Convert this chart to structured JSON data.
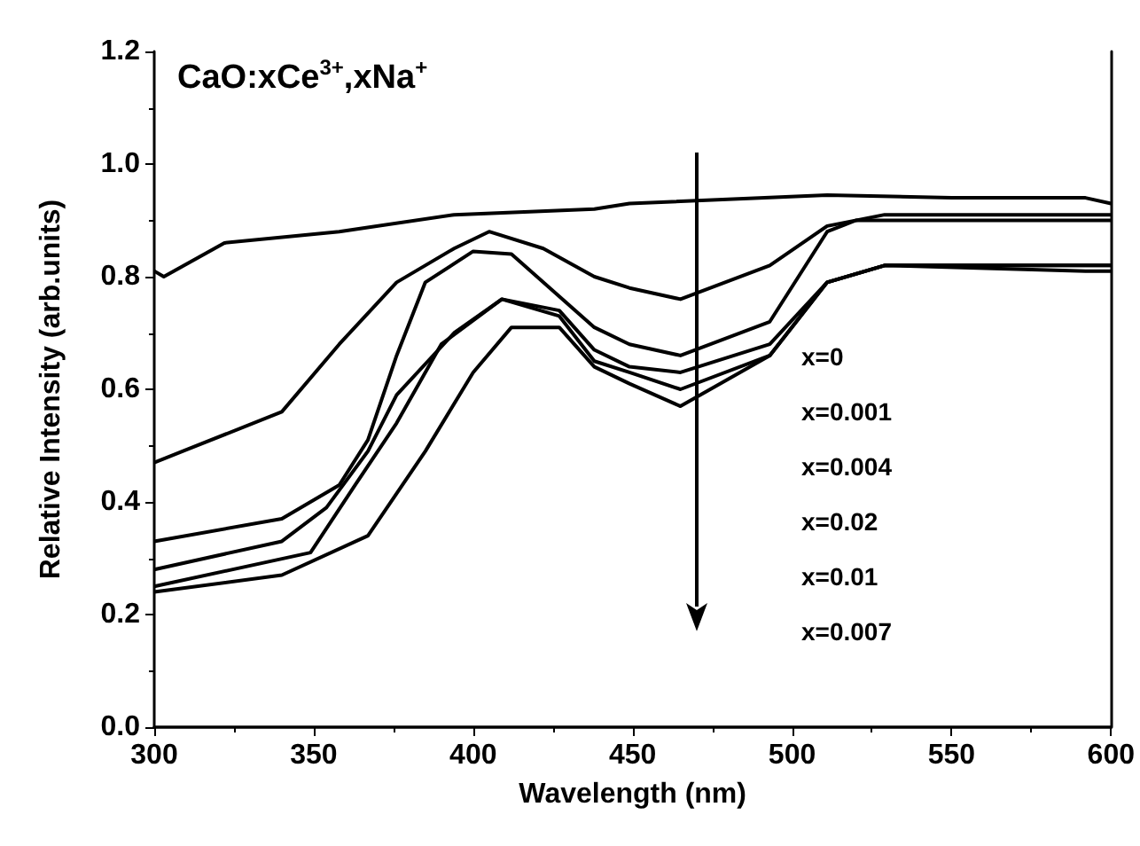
{
  "chart_data": {
    "type": "line",
    "title": "CaO:xCe$^{3+}$,xNa$^{+}$",
    "xlabel": "Wavelength (nm)",
    "ylabel": "Relative Intensity (arb.units)",
    "annotations": [
      "x=0",
      "x=0.001",
      "x=0.004",
      "x=0.02",
      "x=0.01",
      "x=0.007"
    ],
    "xlim": [
      300,
      600
    ],
    "xticks": [
      300,
      350,
      400,
      450,
      500,
      550,
      600
    ],
    "ylim": [
      0,
      1.2
    ],
    "yticks": [
      {
        "value": 0,
        "label": "0.0"
      },
      {
        "value": 0.2,
        "label": "0.2"
      },
      {
        "value": 0.4,
        "label": "0.4"
      },
      {
        "value": 0.6,
        "label": "0.6"
      },
      {
        "value": 0.8,
        "label": "0.8"
      },
      {
        "value": 1.0,
        "label": "1.0"
      },
      {
        "value": 1.2,
        "label": "1.2"
      }
    ],
    "grid": false,
    "marker": "none",
    "line_style": "solid",
    "series": [
      {
        "color": "#000000",
        "x": [
          300,
          303,
          322,
          358,
          394,
          438,
          449,
          511,
          550,
          592,
          600
        ],
        "values": [
          0.81,
          0.8,
          0.86,
          0.88,
          0.91,
          0.92,
          0.93,
          0.945,
          0.94,
          0.94,
          0.93
        ]
      },
      {
        "color": "#000000",
        "x": [
          300,
          340,
          358,
          376,
          394,
          405,
          422,
          438,
          449,
          465,
          493,
          511,
          529,
          592,
          600
        ],
        "values": [
          0.47,
          0.56,
          0.68,
          0.79,
          0.85,
          0.88,
          0.85,
          0.8,
          0.78,
          0.76,
          0.82,
          0.89,
          0.91,
          0.91,
          0.91
        ]
      },
      {
        "color": "#000000",
        "x": [
          300,
          340,
          358,
          367,
          376,
          385,
          400,
          412,
          438,
          449,
          465,
          493,
          511,
          520,
          592,
          600
        ],
        "values": [
          0.33,
          0.37,
          0.43,
          0.51,
          0.66,
          0.79,
          0.845,
          0.84,
          0.71,
          0.68,
          0.66,
          0.72,
          0.88,
          0.9,
          0.9,
          0.9
        ]
      },
      {
        "color": "#000000",
        "x": [
          300,
          340,
          354,
          367,
          376,
          394,
          409,
          427,
          438,
          449,
          465,
          493,
          511,
          529,
          592,
          600
        ],
        "values": [
          0.28,
          0.33,
          0.39,
          0.49,
          0.59,
          0.7,
          0.76,
          0.74,
          0.67,
          0.64,
          0.63,
          0.68,
          0.79,
          0.82,
          0.82,
          0.82
        ]
      },
      {
        "color": "#000000",
        "x": [
          300,
          349,
          363,
          376,
          390,
          409,
          427,
          438,
          449,
          465,
          493,
          511,
          529,
          592,
          600
        ],
        "values": [
          0.25,
          0.31,
          0.43,
          0.54,
          0.68,
          0.76,
          0.73,
          0.65,
          0.63,
          0.6,
          0.66,
          0.79,
          0.82,
          0.82,
          0.82
        ]
      },
      {
        "color": "#000000",
        "x": [
          300,
          340,
          367,
          385,
          400,
          412,
          427,
          438,
          449,
          465,
          493,
          511,
          529,
          592,
          600
        ],
        "values": [
          0.24,
          0.27,
          0.34,
          0.49,
          0.63,
          0.71,
          0.71,
          0.64,
          0.61,
          0.57,
          0.66,
          0.79,
          0.82,
          0.81,
          0.81
        ]
      }
    ]
  }
}
